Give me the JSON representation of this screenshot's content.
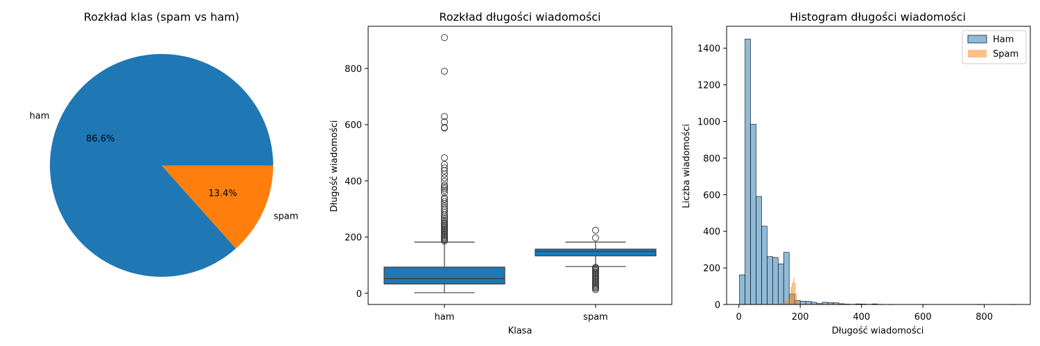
{
  "colors": {
    "blue": "#1f77b4",
    "orange": "#ff7f0e",
    "edge": "#1a1a1a"
  },
  "chart_data": [
    {
      "type": "pie",
      "title": "Rozkład klas (spam vs ham)",
      "slices": [
        {
          "label": "ham",
          "value": 86.6,
          "pct_label": "86.6%",
          "color": "#1f77b4"
        },
        {
          "label": "spam",
          "value": 13.4,
          "pct_label": "13.4%",
          "color": "#ff7f0e"
        }
      ]
    },
    {
      "type": "box",
      "title": "Rozkład długości wiadomości",
      "xlabel": "Klasa",
      "ylabel": "Długość wiadomości",
      "ylim": [
        -40,
        950
      ],
      "yticks": [
        0,
        200,
        400,
        600,
        800
      ],
      "categories": [
        "ham",
        "spam"
      ],
      "boxes": [
        {
          "category": "ham",
          "whislo": 2,
          "q1": 33,
          "median": 52,
          "q3": 93,
          "whishi": 182,
          "outliers": [
            186,
            190,
            194,
            198,
            202,
            206,
            210,
            214,
            218,
            222,
            226,
            230,
            234,
            238,
            242,
            246,
            250,
            256,
            262,
            268,
            274,
            280,
            288,
            296,
            302,
            310,
            318,
            326,
            334,
            340,
            358,
            366,
            372,
            378,
            384,
            398,
            410,
            424,
            436,
            446,
            458,
            482,
            588,
            590,
            610,
            629,
            790,
            910
          ]
        },
        {
          "category": "spam",
          "whislo": 95,
          "q1": 133,
          "median": 149,
          "q3": 157,
          "whishi": 182,
          "outliers": [
            13,
            18,
            22,
            26,
            30,
            34,
            38,
            42,
            46,
            50,
            54,
            58,
            62,
            66,
            70,
            74,
            78,
            82,
            86,
            89,
            92,
            197,
            224
          ]
        }
      ]
    },
    {
      "type": "histogram",
      "title": "Histogram długości wiadomości",
      "xlabel": "Długość wiadomości",
      "ylabel": "Liczba wiadomości",
      "xlim": [
        -40,
        950
      ],
      "ylim": [
        0,
        1520
      ],
      "xticks": [
        0,
        200,
        400,
        600,
        800
      ],
      "yticks": [
        0,
        200,
        400,
        600,
        800,
        1000,
        1200,
        1400
      ],
      "legend_position": "upper right",
      "series": [
        {
          "name": "Ham",
          "color": "#1f77b4",
          "bin_start": 2,
          "bin_width": 18,
          "values": [
            162,
            1450,
            985,
            590,
            428,
            262,
            257,
            222,
            285,
            57,
            22,
            18,
            17,
            12,
            5,
            12,
            10,
            9,
            4,
            2,
            1,
            3,
            2,
            1,
            3,
            1,
            0,
            1,
            0,
            0,
            0,
            0,
            0,
            1,
            0,
            0,
            0,
            0,
            0,
            0,
            0,
            0,
            0,
            1,
            0,
            0,
            0,
            0,
            0,
            1
          ]
        },
        {
          "name": "Spam",
          "color": "#ff7f0e",
          "bin_start": 13,
          "bin_width": 4.2,
          "values": [
            1,
            1,
            0,
            1,
            1,
            1,
            1,
            1,
            2,
            1,
            1,
            1,
            2,
            1,
            2,
            2,
            2,
            2,
            2,
            2,
            3,
            3,
            3,
            3,
            4,
            4,
            5,
            5,
            6,
            7,
            9,
            11,
            14,
            18,
            24,
            34,
            60,
            96,
            120,
            142,
            118,
            60,
            16,
            3,
            2,
            1,
            0,
            1,
            0,
            1
          ]
        }
      ]
    }
  ]
}
